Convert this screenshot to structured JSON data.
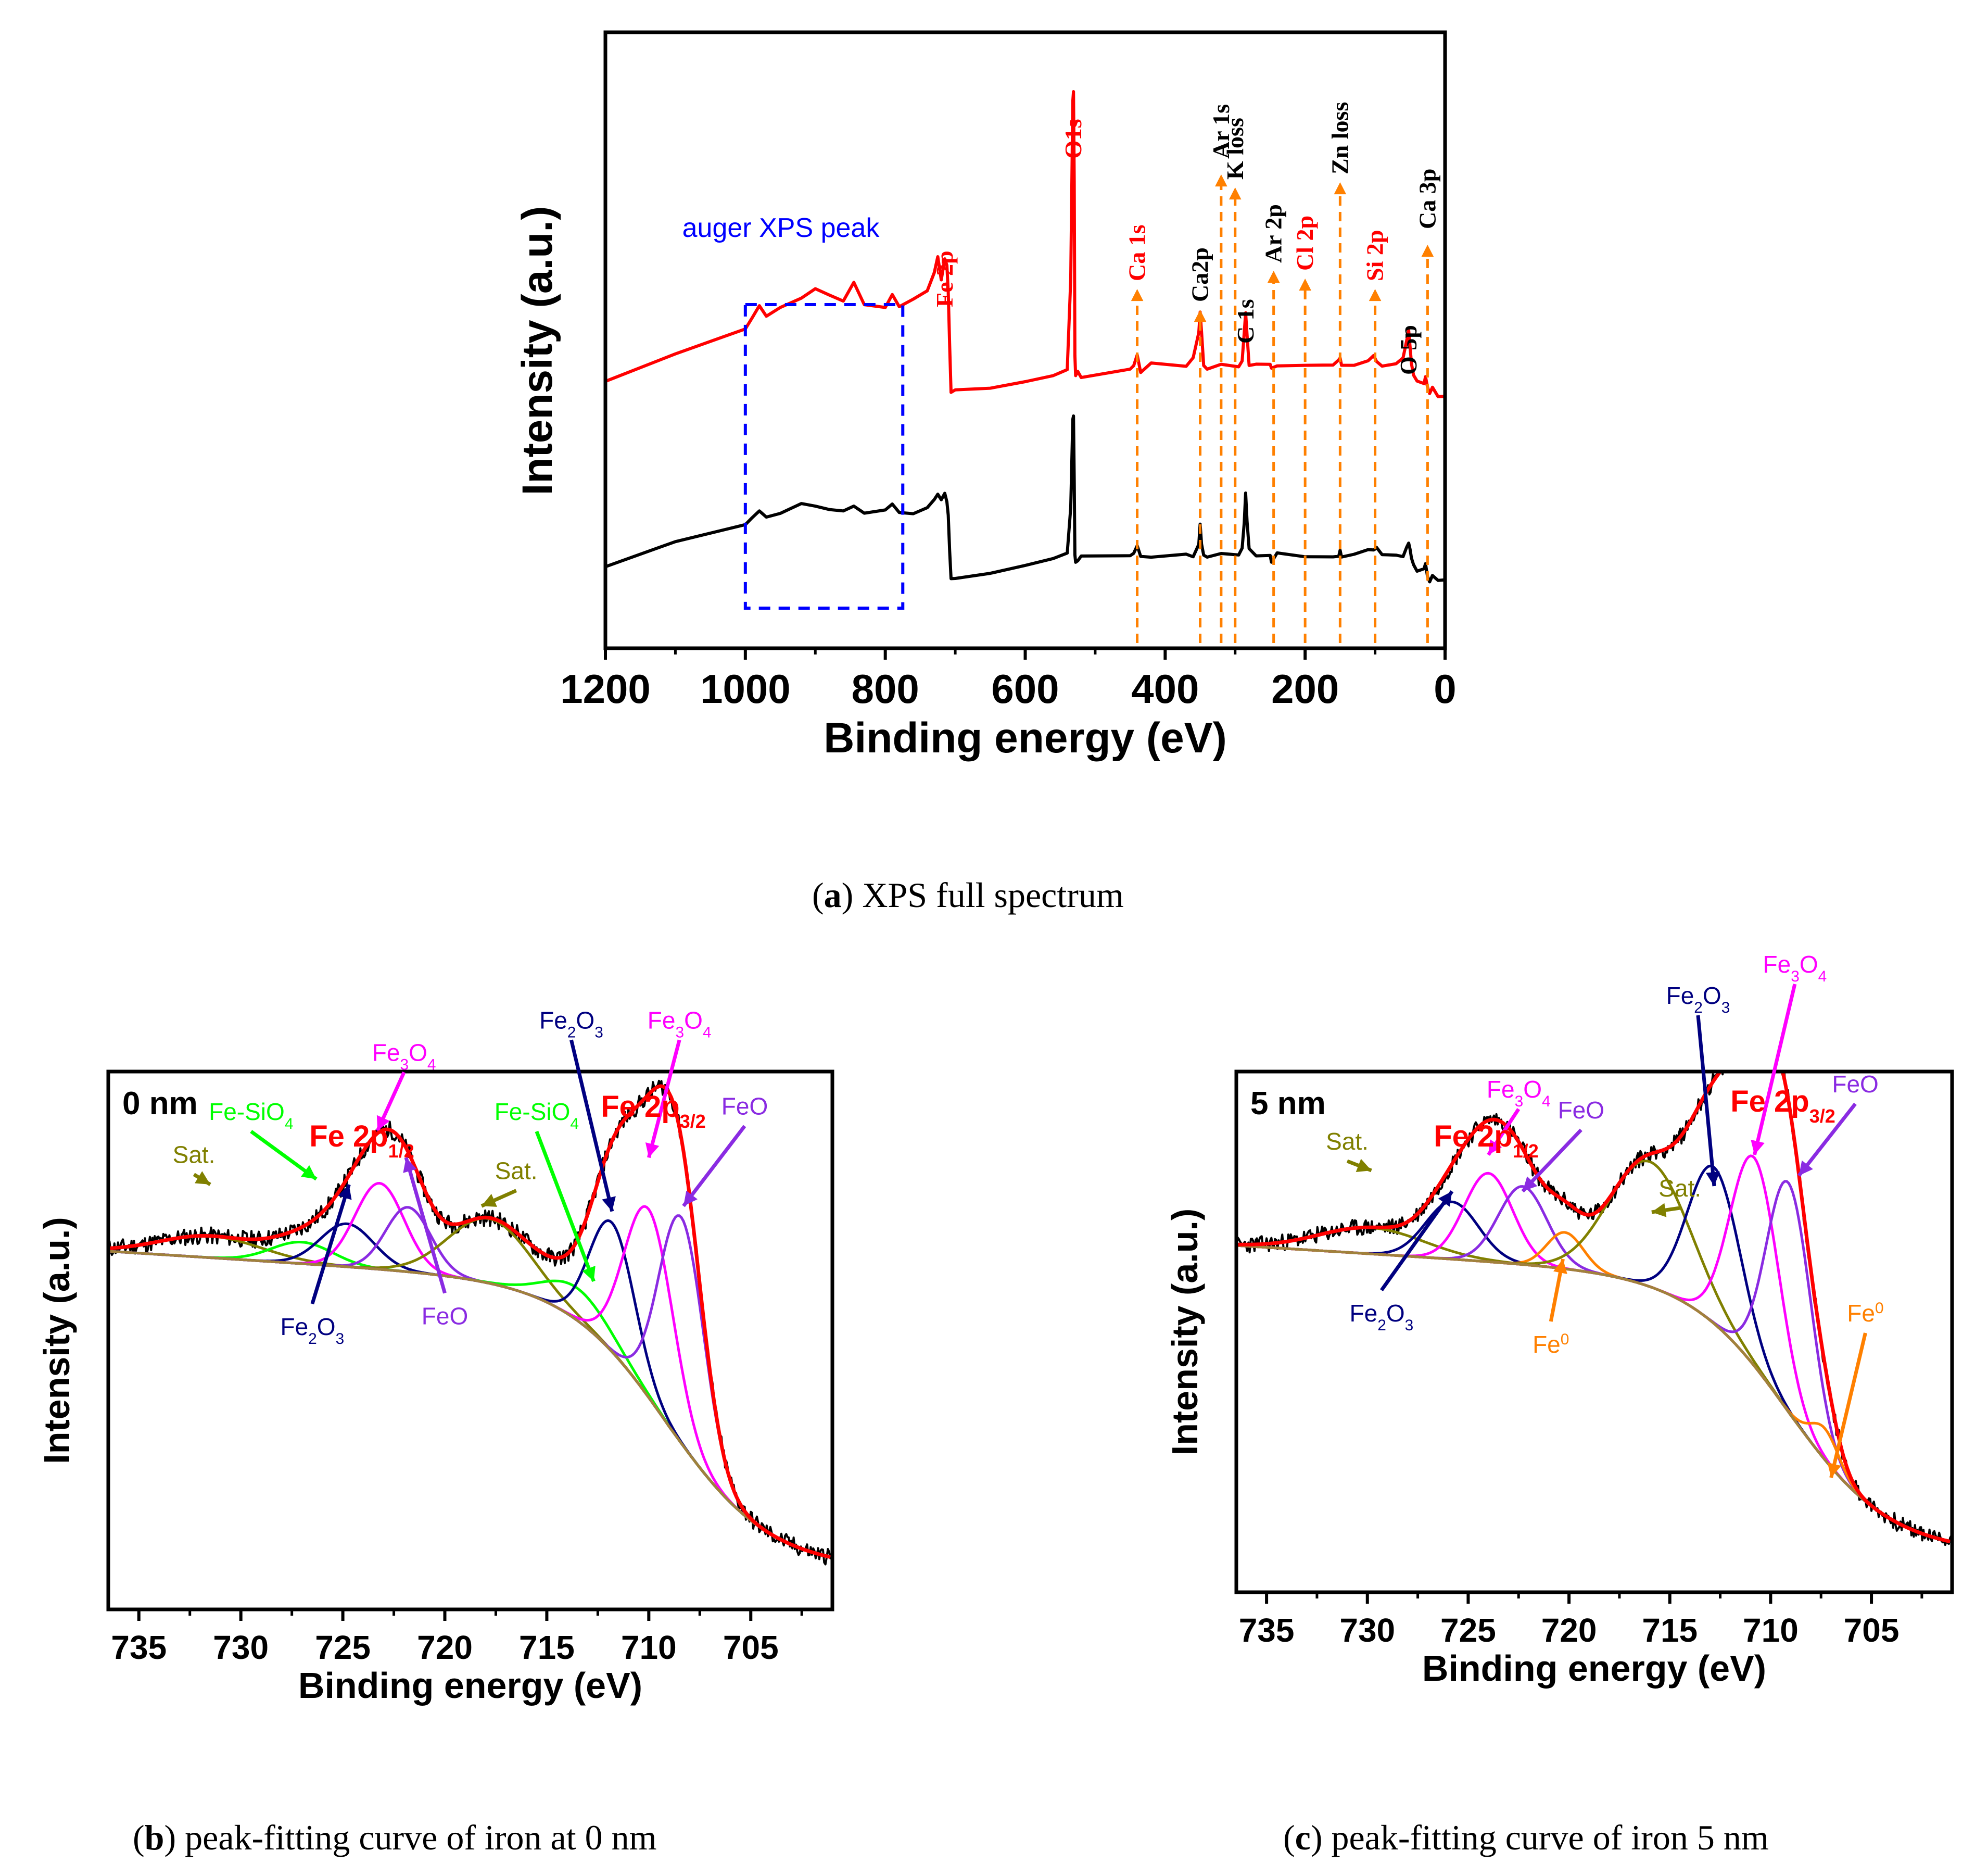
{
  "captions": {
    "a": {
      "letter": "a",
      "text": "XPS full spectrum"
    },
    "b": {
      "letter": "b",
      "text": "peak-fitting curve of iron at 0 nm"
    },
    "c": {
      "letter": "c",
      "text": "peak-fitting curve of iron 5 nm"
    }
  },
  "chart_data": [
    {
      "id": "a",
      "type": "line",
      "title": "XPS full spectrum",
      "xlabel": "Binding energy (eV)",
      "ylabel": "Intensity (a.u.)",
      "xlim": [
        1200,
        0
      ],
      "ylim": [
        0,
        100
      ],
      "xticks": [
        1200,
        1000,
        800,
        600,
        400,
        200,
        0
      ],
      "y_tick_labels": false,
      "series": [
        {
          "name": "red spectrum",
          "color": "#ff0000",
          "x": [
            1200,
            1100,
            1000,
            990,
            980,
            970,
            950,
            920,
            900,
            880,
            860,
            845,
            830,
            800,
            790,
            780,
            760,
            740,
            730,
            725,
            720,
            715,
            712,
            710,
            708,
            706,
            700,
            650,
            600,
            560,
            540,
            535,
            532,
            531,
            530,
            529,
            528,
            525,
            520,
            450,
            445,
            440,
            435,
            420,
            370,
            360,
            352,
            350,
            348,
            345,
            340,
            320,
            295,
            290,
            287,
            285,
            283,
            280,
            270,
            250,
            248,
            240,
            200,
            160,
            152,
            150,
            148,
            130,
            110,
            102,
            100,
            98,
            90,
            70,
            60,
            55,
            52,
            50,
            48,
            45,
            40,
            30,
            28,
            25,
            22,
            18,
            10,
            0
          ],
          "y": [
            43,
            48,
            53,
            55,
            57,
            55,
            57,
            58,
            60,
            59,
            58,
            61,
            57,
            57,
            59,
            57,
            58,
            60,
            63,
            66,
            62,
            66,
            64,
            59,
            50,
            41,
            41,
            42,
            43,
            44,
            45,
            62,
            95,
            96,
            80,
            48,
            44,
            45,
            44,
            45,
            46,
            48,
            45,
            46,
            46,
            47,
            52,
            56,
            52,
            46,
            45,
            46,
            46,
            47,
            52,
            56,
            52,
            46,
            46,
            46,
            45,
            46,
            46,
            46,
            47,
            47,
            46,
            46,
            47,
            48,
            47,
            47,
            46,
            46,
            47,
            50,
            52,
            49,
            46,
            44,
            43,
            43,
            44,
            42,
            41,
            42,
            40,
            40
          ]
        },
        {
          "name": "black spectrum",
          "color": "#000000",
          "x": [
            1200,
            1100,
            1000,
            990,
            980,
            970,
            950,
            920,
            900,
            880,
            860,
            845,
            830,
            800,
            790,
            780,
            760,
            740,
            730,
            725,
            720,
            715,
            712,
            710,
            708,
            706,
            700,
            650,
            600,
            560,
            540,
            535,
            532,
            531,
            530,
            529,
            528,
            525,
            520,
            450,
            445,
            440,
            435,
            420,
            370,
            360,
            352,
            350,
            348,
            345,
            340,
            320,
            295,
            290,
            287,
            285,
            283,
            280,
            270,
            250,
            248,
            240,
            200,
            160,
            152,
            150,
            148,
            130,
            110,
            102,
            100,
            98,
            90,
            70,
            60,
            55,
            52,
            50,
            48,
            45,
            40,
            30,
            28,
            25,
            22,
            18,
            10,
            0
          ],
          "y": [
            9,
            13,
            17,
            18,
            19,
            18,
            19,
            20,
            20,
            19,
            19,
            20,
            19,
            19,
            20,
            19,
            19,
            20,
            21,
            22,
            21,
            22,
            21,
            18,
            12,
            7,
            7,
            8,
            9,
            10,
            11,
            20,
            36,
            37,
            25,
            11,
            10,
            10,
            11,
            11,
            11,
            13,
            11,
            11,
            11,
            11,
            13,
            17,
            13,
            11,
            11,
            11,
            11,
            12,
            17,
            22,
            17,
            12,
            11,
            11,
            10,
            11,
            11,
            11,
            11,
            12,
            11,
            11,
            12,
            12,
            12,
            12,
            11,
            11,
            11,
            12,
            13,
            12,
            10,
            9,
            8,
            8,
            9,
            7,
            6,
            7,
            6,
            6
          ]
        }
      ],
      "annotation_box": {
        "x_range": [
          1000,
          775
        ],
        "label": "auger XPS peak",
        "color": "#0000ff"
      },
      "peak_labels": [
        {
          "text": "Fe 2p",
          "x": 715,
          "color": "#ff0000",
          "arrow": false
        },
        {
          "text": "O1s",
          "x": 531,
          "color": "#ff0000",
          "arrow": false
        },
        {
          "text": "Ca 1s",
          "x": 440,
          "color": "#ff0000",
          "arrow": true
        },
        {
          "text": "Ca2p",
          "x": 350,
          "color": "#000000",
          "arrow": true
        },
        {
          "text": "Ar 1s",
          "x": 320,
          "color": "#000000",
          "arrow": true
        },
        {
          "text": "K loss",
          "x": 300,
          "color": "#000000",
          "arrow": true
        },
        {
          "text": "C 1s",
          "x": 285,
          "color": "#000000",
          "arrow": false
        },
        {
          "text": "Ar 2p",
          "x": 245,
          "color": "#000000",
          "arrow": true
        },
        {
          "text": "Cl 2p",
          "x": 200,
          "color": "#ff0000",
          "arrow": true
        },
        {
          "text": "Zn loss",
          "x": 150,
          "color": "#000000",
          "arrow": true
        },
        {
          "text": "Si 2p",
          "x": 100,
          "color": "#ff0000",
          "arrow": true
        },
        {
          "text": "O 5p",
          "x": 52,
          "color": "#000000",
          "arrow": false
        },
        {
          "text": "Ca 3p",
          "x": 25,
          "color": "#000000",
          "arrow": true
        }
      ]
    },
    {
      "id": "b",
      "type": "line",
      "title": "peak-fitting curve of iron at 0 nm",
      "panel_label": "0 nm",
      "xlabel": "Binding energy (eV)",
      "ylabel": "Intensity (a.u.)",
      "xlim": [
        736.5,
        701
      ],
      "ylim": [
        0,
        100
      ],
      "xticks": [
        735,
        730,
        725,
        720,
        715,
        710,
        705
      ],
      "y_tick_labels": false,
      "baseline": {
        "color": "#a0823c",
        "lo": 8,
        "hi": 60,
        "center": 709,
        "width": 2.5,
        "slope": 0.24
      },
      "components": [
        {
          "name": "Sat.",
          "color": "#808000",
          "center": 731.5,
          "amp": 4,
          "sigma": 2.5
        },
        {
          "name": "Fe-SiO4",
          "color": "#00ff00",
          "center": 727.0,
          "amp": 4,
          "sigma": 1.5
        },
        {
          "name": "Fe2O3",
          "color": "#000080",
          "center": 724.8,
          "amp": 8,
          "sigma": 1.3
        },
        {
          "name": "Fe3O4",
          "color": "#ff00ff",
          "center": 723.2,
          "amp": 16,
          "sigma": 1.2
        },
        {
          "name": "FeO",
          "color": "#8a2be2",
          "center": 721.8,
          "amp": 12,
          "sigma": 1.1
        },
        {
          "name": "Sat.",
          "color": "#808000",
          "center": 717.8,
          "amp": 12,
          "sigma": 2.0
        },
        {
          "name": "Fe-SiO4",
          "color": "#00ff00",
          "center": 713.5,
          "amp": 6,
          "sigma": 1.6
        },
        {
          "name": "Fe2O3",
          "color": "#000080",
          "center": 711.8,
          "amp": 24,
          "sigma": 1.1
        },
        {
          "name": "Fe3O4",
          "color": "#ff00ff",
          "center": 710.0,
          "amp": 35,
          "sigma": 1.2
        },
        {
          "name": "FeO",
          "color": "#8a2be2",
          "center": 708.4,
          "amp": 42,
          "sigma": 1.1
        }
      ],
      "envelope_color": "#ff0000",
      "raw_color": "#000000",
      "heading_left": {
        "base": "Fe 2p",
        "sub": "1/2"
      },
      "heading_right": {
        "base": "Fe 2p",
        "sub": "3/2"
      },
      "annotations": [
        {
          "name": "Sat.",
          "color": "#808000",
          "text_x": 732.3,
          "text_y": 83,
          "tip_x": 731.5,
          "tip_y": 79
        },
        {
          "name": "Fe-SiO4",
          "color": "#00ff00",
          "text_x": 729.5,
          "text_y": 91,
          "tip_x": 726.3,
          "tip_y": 80
        },
        {
          "name": "Fe3O4",
          "color": "#ff00ff",
          "text_x": 722.0,
          "text_y": 102,
          "tip_x": 723.3,
          "tip_y": 89
        },
        {
          "name": "FeO",
          "color": "#8a2be2",
          "text_x": 720.0,
          "text_y": 53,
          "tip_x": 721.9,
          "tip_y": 84
        },
        {
          "name": "Fe2O3",
          "color": "#000080",
          "text_x": 726.5,
          "text_y": 51,
          "tip_x": 724.7,
          "tip_y": 79
        },
        {
          "name": "Sat.",
          "color": "#808000",
          "text_x": 716.5,
          "text_y": 80,
          "tip_x": 718.2,
          "tip_y": 75
        },
        {
          "name": "Fe-SiO4",
          "color": "#00ff00",
          "text_x": 715.5,
          "text_y": 91,
          "tip_x": 712.7,
          "tip_y": 61
        },
        {
          "name": "Fe2O3",
          "color": "#000080",
          "text_x": 713.8,
          "text_y": 108,
          "tip_x": 711.8,
          "tip_y": 74
        },
        {
          "name": "Fe3O4",
          "color": "#ff00ff",
          "text_x": 708.5,
          "text_y": 108,
          "tip_x": 710.0,
          "tip_y": 84
        },
        {
          "name": "FeO",
          "color": "#8a2be2",
          "text_x": 705.3,
          "text_y": 92,
          "tip_x": 708.3,
          "tip_y": 75
        }
      ]
    },
    {
      "id": "c",
      "type": "line",
      "title": "peak-fitting curve of iron 5 nm",
      "panel_label": "5 nm",
      "xlabel": "Binding energy (eV)",
      "ylabel": "Intensity (a.u.)",
      "xlim": [
        736.5,
        701
      ],
      "ylim": [
        0,
        100
      ],
      "xticks": [
        735,
        730,
        725,
        720,
        715,
        710,
        705
      ],
      "y_tick_labels": false,
      "baseline": {
        "color": "#a0823c",
        "lo": 8,
        "hi": 60,
        "center": 709,
        "width": 2.5,
        "slope": 0.24
      },
      "components": [
        {
          "name": "Sat.",
          "color": "#808000",
          "center": 729.8,
          "amp": 5,
          "sigma": 2.6
        },
        {
          "name": "Fe2O3",
          "color": "#000080",
          "center": 725.8,
          "amp": 11,
          "sigma": 1.3
        },
        {
          "name": "Fe3O4",
          "color": "#ff00ff",
          "center": 724.0,
          "amp": 17,
          "sigma": 1.2
        },
        {
          "name": "FeO",
          "color": "#8a2be2",
          "center": 722.3,
          "amp": 15,
          "sigma": 1.2
        },
        {
          "name": "Fe0",
          "color": "#ff8000",
          "center": 720.2,
          "amp": 7,
          "sigma": 0.9
        },
        {
          "name": "Sat.",
          "color": "#808000",
          "center": 716.0,
          "amp": 24,
          "sigma": 2.0
        },
        {
          "name": "Fe2O3",
          "color": "#000080",
          "center": 712.8,
          "amp": 30,
          "sigma": 1.3
        },
        {
          "name": "Fe3O4",
          "color": "#ff00ff",
          "center": 710.8,
          "amp": 40,
          "sigma": 1.2
        },
        {
          "name": "FeO",
          "color": "#8a2be2",
          "center": 709.1,
          "amp": 44,
          "sigma": 1.1
        },
        {
          "name": "Fe0",
          "color": "#ff8000",
          "center": 707.3,
          "amp": 6,
          "sigma": 0.7
        }
      ],
      "envelope_color": "#ff0000",
      "raw_color": "#000000",
      "heading_left": {
        "base": "Fe 2p",
        "sub": "1/2"
      },
      "heading_right": {
        "base": "Fe 2p",
        "sub": "3/2"
      },
      "annotations": [
        {
          "name": "Sat.",
          "color": "#808000",
          "text_x": 731.0,
          "text_y": 85,
          "tip_x": 729.8,
          "tip_y": 81
        },
        {
          "name": "Fe2O3",
          "color": "#000080",
          "text_x": 729.3,
          "text_y": 52,
          "tip_x": 725.8,
          "tip_y": 77
        },
        {
          "name": "Fe3O4",
          "color": "#ff00ff",
          "text_x": 722.5,
          "text_y": 95,
          "tip_x": 724.0,
          "tip_y": 84
        },
        {
          "name": "FeO",
          "color": "#8a2be2",
          "text_x": 719.4,
          "text_y": 91,
          "tip_x": 722.3,
          "tip_y": 77
        },
        {
          "name": "Fe0",
          "color": "#ff8000",
          "text_x": 720.9,
          "text_y": 46,
          "tip_x": 720.3,
          "tip_y": 64
        },
        {
          "name": "Sat.",
          "color": "#808000",
          "text_x": 714.5,
          "text_y": 76,
          "tip_x": 715.9,
          "tip_y": 73
        },
        {
          "name": "Fe2O3",
          "color": "#000080",
          "text_x": 713.6,
          "text_y": 113,
          "tip_x": 712.8,
          "tip_y": 78
        },
        {
          "name": "Fe3O4",
          "color": "#ff00ff",
          "text_x": 708.8,
          "text_y": 119,
          "tip_x": 710.8,
          "tip_y": 84
        },
        {
          "name": "FeO",
          "color": "#8a2be2",
          "text_x": 705.8,
          "text_y": 96,
          "tip_x": 708.6,
          "tip_y": 80
        },
        {
          "name": "Fe0",
          "color": "#ff8000",
          "text_x": 705.3,
          "text_y": 52,
          "tip_x": 707.0,
          "tip_y": 22
        }
      ]
    }
  ]
}
